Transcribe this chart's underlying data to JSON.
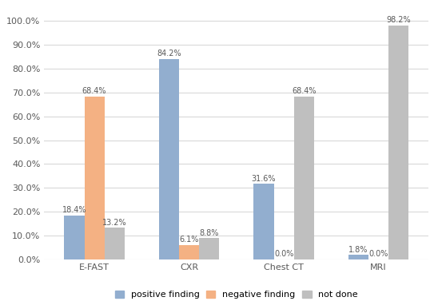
{
  "categories": [
    "E-FAST",
    "CXR",
    "Chest CT",
    "MRI"
  ],
  "series": {
    "positive finding": [
      18.4,
      84.2,
      31.6,
      1.8
    ],
    "negative finding": [
      68.4,
      6.1,
      0.0,
      0.0
    ],
    "not done": [
      13.2,
      8.8,
      68.4,
      98.2
    ]
  },
  "colors": {
    "positive finding": "#92AECF",
    "negative finding": "#F4B183",
    "not done": "#BFBFBF"
  },
  "ylim": [
    0,
    100
  ],
  "yticks": [
    0,
    10,
    20,
    30,
    40,
    50,
    60,
    70,
    80,
    90,
    100
  ],
  "ytick_labels": [
    "0.0%",
    "10.0%",
    "20.0%",
    "30.0%",
    "40.0%",
    "50.0%",
    "60.0%",
    "70.0%",
    "80.0%",
    "90.0%",
    "100.0%"
  ],
  "bar_width": 0.18,
  "label_fontsize": 7.0,
  "legend_fontsize": 8.0,
  "tick_fontsize": 8.0,
  "background_color": "#FFFFFF",
  "grid_color": "#D9D9D9"
}
